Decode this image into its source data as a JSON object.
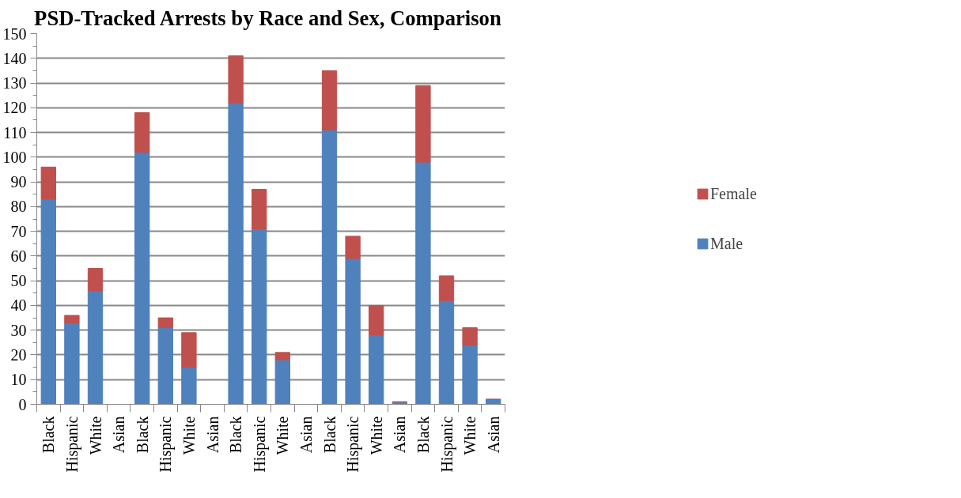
{
  "chart_data": {
    "type": "bar",
    "title": "PSD-Tracked Arrests by Race and Sex,  Comparison",
    "stacked": true,
    "categories": [
      "Black",
      "Hispanic",
      "White",
      "Asian",
      "Black",
      "Hispanic",
      "White",
      "Asian",
      "Black",
      "Hispanic",
      "White",
      "Asian",
      "Black",
      "Hispanic",
      "White",
      "Asian",
      "Black",
      "Hispanic",
      "White",
      "Asian"
    ],
    "series": [
      {
        "name": "Male",
        "color": "#4f81bd",
        "values": [
          83,
          33,
          46,
          0,
          102,
          31,
          15,
          0,
          122,
          71,
          18,
          0,
          111,
          59,
          28,
          1,
          98,
          42,
          24,
          2
        ]
      },
      {
        "name": "Female",
        "color": "#c0504d",
        "values": [
          13,
          3,
          9,
          0,
          16,
          4,
          14,
          0,
          19,
          16,
          3,
          0,
          24,
          9,
          12,
          0,
          31,
          10,
          7,
          0
        ]
      }
    ],
    "ylim": [
      0,
      150
    ],
    "yticks": [
      0,
      10,
      20,
      30,
      40,
      50,
      60,
      70,
      80,
      90,
      100,
      110,
      120,
      130,
      140,
      150
    ],
    "grid": "y",
    "legend": "right"
  }
}
